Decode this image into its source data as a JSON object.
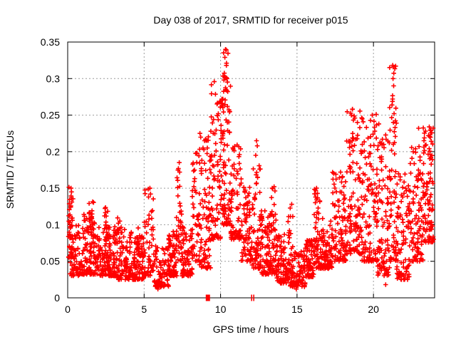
{
  "title": "Day 038 of 2017, SRMTID for receiver p015",
  "x_axis": {
    "label": "GPS time / hours",
    "min": 0,
    "max": 24,
    "ticks": [
      {
        "value": 0,
        "label": "0"
      },
      {
        "value": 5,
        "label": "5"
      },
      {
        "value": 10,
        "label": "10"
      },
      {
        "value": 15,
        "label": "15"
      },
      {
        "value": 20,
        "label": "20"
      }
    ]
  },
  "y_axis": {
    "label": "SRMTID / TECUs",
    "min": 0,
    "max": 0.35,
    "ticks": [
      {
        "value": 0.0,
        "label": "0"
      },
      {
        "value": 0.05,
        "label": "0.05"
      },
      {
        "value": 0.1,
        "label": "0.1"
      },
      {
        "value": 0.15,
        "label": "0.15"
      },
      {
        "value": 0.2,
        "label": "0.2"
      },
      {
        "value": 0.25,
        "label": "0.25"
      },
      {
        "value": 0.3,
        "label": "0.3"
      },
      {
        "value": 0.35,
        "label": "0.35"
      }
    ]
  },
  "chart_data": {
    "type": "scatter",
    "marker": "plus",
    "marker_color": "#ff0000",
    "grid": true,
    "grid_style": "dashed-gray",
    "title": "Day 038 of 2017, SRMTID for receiver p015",
    "xlabel": "GPS time / hours",
    "ylabel": "SRMTID / TECUs",
    "xlim": [
      0,
      24
    ],
    "ylim": [
      0,
      0.35
    ],
    "seed": 42,
    "feature_points": [
      [
        10.32,
        0.34
      ],
      [
        10.28,
        0.329
      ],
      [
        10.38,
        0.318
      ],
      [
        10.3,
        0.302
      ],
      [
        10.42,
        0.3
      ],
      [
        10.22,
        0.298
      ],
      [
        10.35,
        0.285
      ],
      [
        10.15,
        0.272
      ],
      [
        10.45,
        0.262
      ],
      [
        10.6,
        0.255
      ],
      [
        9.85,
        0.252
      ],
      [
        9.95,
        0.268
      ],
      [
        21.3,
        0.316
      ],
      [
        21.28,
        0.3
      ],
      [
        21.32,
        0.29
      ],
      [
        21.25,
        0.272
      ],
      [
        21.35,
        0.252
      ],
      [
        21.3,
        0.24
      ],
      [
        18.62,
        0.258
      ],
      [
        18.55,
        0.25
      ],
      [
        18.78,
        0.246
      ],
      [
        18.95,
        0.24
      ],
      [
        19.92,
        0.25
      ],
      [
        20.35,
        0.238
      ],
      [
        22.95,
        0.232
      ],
      [
        23.4,
        0.228
      ],
      [
        23.6,
        0.222
      ],
      [
        23.3,
        0.215
      ],
      [
        0.22,
        0.15
      ],
      [
        0.25,
        0.145
      ],
      [
        16.28,
        0.15
      ],
      [
        12.35,
        0.215
      ],
      [
        12.4,
        0.208
      ],
      [
        12.3,
        0.195
      ],
      [
        12.42,
        0.165
      ],
      [
        12.35,
        0.157
      ],
      [
        13.5,
        0.152
      ],
      [
        8.42,
        0.198
      ],
      [
        8.65,
        0.225
      ],
      [
        8.85,
        0.205
      ],
      [
        8.95,
        0.215
      ],
      [
        7.3,
        0.185
      ],
      [
        7.32,
        0.172
      ],
      [
        5.38,
        0.15
      ],
      [
        5.42,
        0.142
      ],
      [
        14.65,
        0.128
      ],
      [
        17.85,
        0.172
      ],
      [
        17.95,
        0.165
      ],
      [
        5.9,
        0.012
      ],
      [
        6.1,
        0.015
      ],
      [
        14.95,
        0.012
      ],
      [
        20.8,
        0.018
      ]
    ],
    "density_bands": [
      [
        0.05,
        0.35,
        45,
        0.055,
        0.152,
        1.6
      ],
      [
        0.1,
        0.9,
        60,
        0.03,
        0.1,
        1.8
      ],
      [
        0.9,
        2.1,
        130,
        0.032,
        0.115,
        2.0
      ],
      [
        1.4,
        1.8,
        18,
        0.08,
        0.135,
        1.2
      ],
      [
        2.1,
        3.1,
        120,
        0.03,
        0.1,
        2.0
      ],
      [
        2.4,
        2.75,
        14,
        0.08,
        0.125,
        1.2
      ],
      [
        3.1,
        4.2,
        110,
        0.025,
        0.095,
        2.0
      ],
      [
        3.2,
        3.5,
        10,
        0.07,
        0.115,
        1.2
      ],
      [
        4.2,
        5.0,
        90,
        0.025,
        0.085,
        1.9
      ],
      [
        4.5,
        4.75,
        10,
        0.06,
        0.105,
        1.2
      ],
      [
        5.0,
        5.65,
        55,
        0.03,
        0.15,
        1.9
      ],
      [
        5.65,
        6.6,
        85,
        0.015,
        0.072,
        1.8
      ],
      [
        6.6,
        7.15,
        70,
        0.03,
        0.092,
        1.8
      ],
      [
        7.1,
        7.45,
        35,
        0.05,
        0.188,
        1.5
      ],
      [
        7.45,
        8.15,
        75,
        0.03,
        0.1,
        1.9
      ],
      [
        8.15,
        8.6,
        45,
        0.05,
        0.2,
        1.5
      ],
      [
        8.6,
        9.35,
        90,
        0.04,
        0.225,
        1.6
      ],
      [
        9.35,
        10.0,
        75,
        0.08,
        0.3,
        1.8
      ],
      [
        10.0,
        10.65,
        95,
        0.1,
        0.342,
        1.9
      ],
      [
        10.65,
        11.35,
        75,
        0.08,
        0.21,
        1.7
      ],
      [
        11.35,
        12.05,
        70,
        0.05,
        0.155,
        1.7
      ],
      [
        12.05,
        12.65,
        70,
        0.04,
        0.19,
        2.0
      ],
      [
        12.65,
        13.65,
        105,
        0.032,
        0.125,
        1.9
      ],
      [
        13.3,
        13.65,
        12,
        0.09,
        0.152,
        1.2
      ],
      [
        13.65,
        14.55,
        95,
        0.02,
        0.09,
        1.9
      ],
      [
        14.4,
        14.75,
        10,
        0.07,
        0.128,
        1.2
      ],
      [
        14.55,
        15.55,
        95,
        0.015,
        0.068,
        1.8
      ],
      [
        15.55,
        16.1,
        70,
        0.028,
        0.08,
        1.8
      ],
      [
        16.1,
        16.5,
        50,
        0.04,
        0.15,
        1.5
      ],
      [
        16.5,
        17.3,
        85,
        0.04,
        0.11,
        1.8
      ],
      [
        17.3,
        18.2,
        95,
        0.05,
        0.175,
        1.7
      ],
      [
        18.2,
        19.25,
        115,
        0.06,
        0.262,
        1.7
      ],
      [
        19.25,
        20.25,
        115,
        0.05,
        0.252,
        1.9
      ],
      [
        20.25,
        21.05,
        100,
        0.03,
        0.225,
        1.7
      ],
      [
        21.05,
        21.5,
        60,
        0.05,
        0.322,
        1.8
      ],
      [
        21.5,
        22.35,
        90,
        0.025,
        0.175,
        1.8
      ],
      [
        22.35,
        23.25,
        100,
        0.05,
        0.21,
        1.7
      ],
      [
        23.25,
        23.95,
        95,
        0.075,
        0.238,
        1.5
      ]
    ],
    "baseline_markers": [
      {
        "x": 9.17,
        "y": 0,
        "style": "filled-square"
      },
      {
        "x": 12.03,
        "y": 0,
        "style": "tick"
      },
      {
        "x": 12.17,
        "y": 0,
        "style": "tick"
      }
    ]
  }
}
